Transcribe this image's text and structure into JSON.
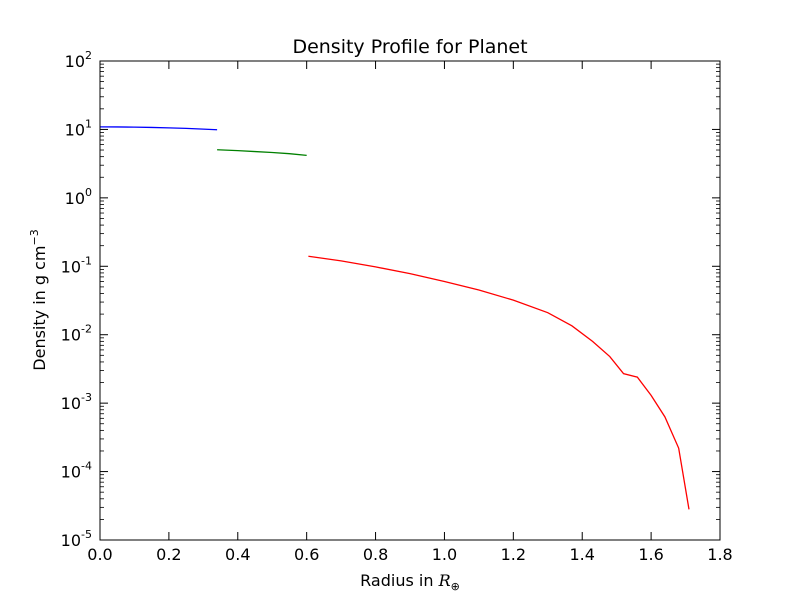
{
  "chart_data": {
    "type": "line",
    "title": "Density Profile for Planet",
    "xlabel_text": "Radius in ",
    "xlabel_math": "R",
    "xlabel_sub": "⊕",
    "ylabel_text": "Density in g cm",
    "ylabel_sup": "−3",
    "xlim": [
      0.0,
      1.8
    ],
    "ylim": [
      1e-05,
      100
    ],
    "yscale": "log",
    "grid": false,
    "legend": "none",
    "x_ticks": [
      0.0,
      0.2,
      0.4,
      0.6,
      0.8,
      1.0,
      1.2,
      1.4,
      1.6,
      1.8
    ],
    "x_tick_labels": [
      "0.0",
      "0.2",
      "0.4",
      "0.6",
      "0.8",
      "1.0",
      "1.2",
      "1.4",
      "1.6",
      "1.8"
    ],
    "y_ticks": [
      {
        "value": 100,
        "base": "10",
        "exp": "2"
      },
      {
        "value": 10,
        "base": "10",
        "exp": "1"
      },
      {
        "value": 1,
        "base": "10",
        "exp": "0"
      },
      {
        "value": 0.1,
        "base": "10",
        "exp": "-1"
      },
      {
        "value": 0.01,
        "base": "10",
        "exp": "-2"
      },
      {
        "value": 0.001,
        "base": "10",
        "exp": "-3"
      },
      {
        "value": 0.0001,
        "base": "10",
        "exp": "-4"
      },
      {
        "value": 1e-05,
        "base": "10",
        "exp": "-5"
      }
    ],
    "series": [
      {
        "color": "#0000ff",
        "x": [
          0.0,
          0.05,
          0.1,
          0.15,
          0.2,
          0.25,
          0.3,
          0.34
        ],
        "y": [
          10.9,
          10.88,
          10.8,
          10.7,
          10.55,
          10.35,
          10.1,
          9.9
        ]
      },
      {
        "color": "#008000",
        "x": [
          0.34,
          0.4,
          0.45,
          0.5,
          0.55,
          0.6
        ],
        "y": [
          5.05,
          4.9,
          4.75,
          4.6,
          4.42,
          4.18
        ]
      },
      {
        "color": "#ff0000",
        "x": [
          0.605,
          0.7,
          0.8,
          0.9,
          1.0,
          1.1,
          1.2,
          1.3,
          1.37,
          1.43,
          1.48,
          1.52,
          1.56,
          1.6,
          1.64,
          1.68,
          1.71
        ],
        "y": [
          0.14,
          0.12,
          0.098,
          0.078,
          0.06,
          0.045,
          0.032,
          0.021,
          0.0135,
          0.008,
          0.0048,
          0.0027,
          0.0024,
          0.0013,
          0.00063,
          0.00022,
          2.8e-05
        ]
      }
    ]
  }
}
